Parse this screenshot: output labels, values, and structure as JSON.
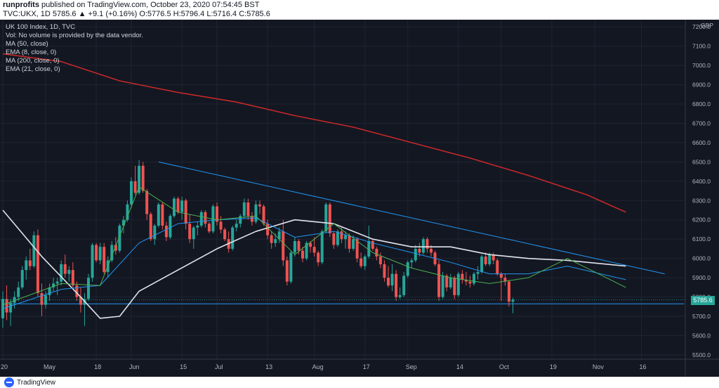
{
  "header": {
    "user": "runprofits",
    "published": " published on TradingView.com, October 23, 2020 07:54:45 BST",
    "symbol_line": "TVC:UKX, 1D  5785.6  ▲ +9.1 (+0.16%)  O:5776.5  H:5796.4  L:5716.4  C:5785.6"
  },
  "legend": {
    "title": "UK 100 Index, 1D, TVC",
    "volume_note": "Vol: No volume is provided by the data vendor.",
    "studies": [
      "MA (50, close)",
      "EMA (8, close, 0)",
      "MA (200, close, 0)",
      "EMA (21, close, 0)"
    ]
  },
  "price_tag": "5785.6",
  "footer": {
    "brand": "TradingView"
  },
  "colors": {
    "background": "#131722",
    "up": "#26a69a",
    "down": "#ef5350",
    "ma50": "#e0e3eb",
    "ema8": "#4caf50",
    "ma200": "#c62828",
    "ema21": "#2196f3",
    "trendline": "#2196f3"
  },
  "chart_data": {
    "type": "candlestick",
    "currency": "GBP",
    "ylim": [
      5500,
      7200
    ],
    "yticks": [
      "7200.0",
      "7100.0",
      "7000.0",
      "6900.0",
      "6800.0",
      "6700.0",
      "6600.0",
      "6500.0",
      "6400.0",
      "6300.0",
      "6200.0",
      "6100.0",
      "6000.0",
      "5900.0",
      "5800.0",
      "5700.0",
      "5600.0",
      "5500.0"
    ],
    "xticks": [
      "20",
      "May",
      "18",
      "Jun",
      "15",
      "Jul",
      "13",
      "Aug",
      "17",
      "Sep",
      "14",
      "Oct",
      "19",
      "Nov",
      "16"
    ],
    "last_price": 5785.6,
    "ohlc": [
      [
        5690,
        5830,
        5640,
        5790
      ],
      [
        5790,
        5860,
        5680,
        5720
      ],
      [
        5720,
        5790,
        5650,
        5770
      ],
      [
        5770,
        5830,
        5740,
        5800
      ],
      [
        5800,
        5880,
        5780,
        5850
      ],
      [
        5850,
        5960,
        5840,
        5940
      ],
      [
        5940,
        6010,
        5890,
        5990
      ],
      [
        5990,
        6050,
        5940,
        5960
      ],
      [
        5960,
        6140,
        5950,
        6120
      ],
      [
        6120,
        6150,
        5800,
        5820
      ],
      [
        5820,
        5870,
        5700,
        5760
      ],
      [
        5760,
        5830,
        5740,
        5810
      ],
      [
        5810,
        5870,
        5780,
        5850
      ],
      [
        5850,
        5900,
        5830,
        5870
      ],
      [
        5870,
        5900,
        5810,
        5880
      ],
      [
        5880,
        5990,
        5860,
        5970
      ],
      [
        5970,
        6020,
        5900,
        5920
      ],
      [
        5920,
        5960,
        5880,
        5940
      ],
      [
        5940,
        5980,
        5850,
        5860
      ],
      [
        5860,
        5880,
        5780,
        5800
      ],
      [
        5800,
        5850,
        5720,
        5760
      ],
      [
        5760,
        5820,
        5650,
        5790
      ],
      [
        5790,
        5920,
        5780,
        5900
      ],
      [
        5900,
        6080,
        5880,
        6070
      ],
      [
        6070,
        6080,
        5980,
        5990
      ],
      [
        5990,
        6080,
        5970,
        6060
      ],
      [
        6060,
        6080,
        5920,
        5930
      ],
      [
        5930,
        6010,
        5900,
        5990
      ],
      [
        5990,
        6090,
        5980,
        6070
      ],
      [
        6070,
        6110,
        6020,
        6040
      ],
      [
        6040,
        6180,
        6030,
        6170
      ],
      [
        6170,
        6220,
        6130,
        6200
      ],
      [
        6200,
        6300,
        6190,
        6280
      ],
      [
        6280,
        6420,
        6260,
        6400
      ],
      [
        6400,
        6480,
        6330,
        6340
      ],
      [
        6340,
        6510,
        6330,
        6480
      ],
      [
        6480,
        6500,
        6340,
        6350
      ],
      [
        6350,
        6360,
        6200,
        6230
      ],
      [
        6230,
        6240,
        6090,
        6100
      ],
      [
        6100,
        6180,
        6070,
        6170
      ],
      [
        6170,
        6290,
        6160,
        6280
      ],
      [
        6280,
        6290,
        6150,
        6170
      ],
      [
        6170,
        6190,
        6090,
        6110
      ],
      [
        6110,
        6230,
        6100,
        6220
      ],
      [
        6220,
        6320,
        6210,
        6310
      ],
      [
        6310,
        6320,
        6230,
        6240
      ],
      [
        6240,
        6320,
        6200,
        6300
      ],
      [
        6300,
        6310,
        6150,
        6180
      ],
      [
        6180,
        6230,
        6080,
        6100
      ],
      [
        6100,
        6170,
        6050,
        6160
      ],
      [
        6160,
        6190,
        6120,
        6170
      ],
      [
        6170,
        6250,
        6160,
        6240
      ],
      [
        6240,
        6250,
        6160,
        6180
      ],
      [
        6180,
        6190,
        6130,
        6140
      ],
      [
        6140,
        6280,
        6130,
        6270
      ],
      [
        6270,
        6290,
        6170,
        6190
      ],
      [
        6190,
        6220,
        6130,
        6150
      ],
      [
        6150,
        6160,
        6090,
        6100
      ],
      [
        6100,
        6140,
        6030,
        6050
      ],
      [
        6050,
        6170,
        6040,
        6160
      ],
      [
        6160,
        6200,
        6140,
        6180
      ],
      [
        6180,
        6230,
        6160,
        6220
      ],
      [
        6220,
        6310,
        6210,
        6290
      ],
      [
        6290,
        6310,
        6200,
        6220
      ],
      [
        6220,
        6240,
        6170,
        6190
      ],
      [
        6190,
        6300,
        6180,
        6280
      ],
      [
        6280,
        6300,
        6230,
        6270
      ],
      [
        6270,
        6280,
        6170,
        6180
      ],
      [
        6180,
        6200,
        6100,
        6120
      ],
      [
        6120,
        6140,
        6050,
        6080
      ],
      [
        6080,
        6130,
        6060,
        6100
      ],
      [
        6100,
        6160,
        6080,
        6140
      ],
      [
        6140,
        6200,
        5960,
        5990
      ],
      [
        5990,
        6010,
        5860,
        5880
      ],
      [
        5880,
        6040,
        5870,
        6030
      ],
      [
        6030,
        6110,
        6010,
        6090
      ],
      [
        6090,
        6100,
        6020,
        6040
      ],
      [
        6040,
        6060,
        5980,
        6000
      ],
      [
        6000,
        6090,
        5990,
        6080
      ],
      [
        6080,
        6090,
        6030,
        6060
      ],
      [
        6060,
        6110,
        6010,
        6030
      ],
      [
        6030,
        6040,
        5960,
        5980
      ],
      [
        5980,
        6150,
        5970,
        6140
      ],
      [
        6140,
        6290,
        6130,
        6280
      ],
      [
        6280,
        6290,
        6110,
        6130
      ],
      [
        6130,
        6140,
        6050,
        6070
      ],
      [
        6070,
        6150,
        6060,
        6140
      ],
      [
        6140,
        6160,
        6080,
        6100
      ],
      [
        6100,
        6140,
        6050,
        6120
      ],
      [
        6120,
        6130,
        6030,
        6050
      ],
      [
        6050,
        6120,
        6040,
        6100
      ],
      [
        6100,
        6110,
        5980,
        6000
      ],
      [
        6000,
        6030,
        5950,
        5960
      ],
      [
        5960,
        6020,
        5940,
        6010
      ],
      [
        6010,
        6170,
        6000,
        6090
      ],
      [
        6090,
        6100,
        6040,
        6050
      ],
      [
        6050,
        6060,
        5990,
        6010
      ],
      [
        6010,
        6030,
        5950,
        5970
      ],
      [
        5970,
        5990,
        5880,
        5900
      ],
      [
        5900,
        5960,
        5850,
        5860
      ],
      [
        5860,
        5970,
        5830,
        5920
      ],
      [
        5920,
        5940,
        5780,
        5800
      ],
      [
        5800,
        5850,
        5790,
        5810
      ],
      [
        5810,
        5930,
        5800,
        5910
      ],
      [
        5910,
        5990,
        5900,
        5980
      ],
      [
        5980,
        6000,
        5950,
        5990
      ],
      [
        5990,
        6070,
        5980,
        6050
      ],
      [
        6050,
        6080,
        6010,
        6030
      ],
      [
        6030,
        6110,
        6020,
        6100
      ],
      [
        6100,
        6110,
        6030,
        6050
      ],
      [
        6050,
        6070,
        6010,
        6030
      ],
      [
        6030,
        6040,
        5960,
        5970
      ],
      [
        5970,
        5990,
        5780,
        5800
      ],
      [
        5800,
        5930,
        5790,
        5910
      ],
      [
        5910,
        5920,
        5830,
        5850
      ],
      [
        5850,
        5920,
        5840,
        5900
      ],
      [
        5900,
        5910,
        5790,
        5810
      ],
      [
        5810,
        5930,
        5800,
        5920
      ],
      [
        5920,
        5940,
        5870,
        5890
      ],
      [
        5890,
        5930,
        5860,
        5880
      ],
      [
        5880,
        5910,
        5850,
        5870
      ],
      [
        5870,
        5930,
        5860,
        5920
      ],
      [
        5920,
        5960,
        5890,
        5930
      ],
      [
        5930,
        6020,
        5920,
        6010
      ],
      [
        6010,
        6030,
        5960,
        5970
      ],
      [
        5970,
        6030,
        5960,
        6020
      ],
      [
        6020,
        6030,
        5970,
        5990
      ],
      [
        5990,
        6000,
        5910,
        5920
      ],
      [
        5920,
        5930,
        5780,
        5900
      ],
      [
        5900,
        5920,
        5860,
        5880
      ],
      [
        5880,
        5890,
        5750,
        5776
      ],
      [
        5776,
        5796,
        5716,
        5786
      ]
    ],
    "series": [
      {
        "name": "MA (200, close, 0)",
        "points": [
          [
            0,
            7060
          ],
          [
            15,
            7020
          ],
          [
            30,
            6920
          ],
          [
            45,
            6860
          ],
          [
            60,
            6810
          ],
          [
            75,
            6740
          ],
          [
            90,
            6680
          ],
          [
            105,
            6600
          ],
          [
            120,
            6520
          ],
          [
            135,
            6430
          ],
          [
            150,
            6330
          ],
          [
            160,
            6240
          ]
        ]
      },
      {
        "name": "MA (50, close)",
        "points": [
          [
            0,
            6250
          ],
          [
            10,
            6010
          ],
          [
            20,
            5800
          ],
          [
            25,
            5690
          ],
          [
            30,
            5700
          ],
          [
            35,
            5830
          ],
          [
            45,
            5940
          ],
          [
            55,
            6050
          ],
          [
            65,
            6140
          ],
          [
            75,
            6200
          ],
          [
            85,
            6180
          ],
          [
            95,
            6100
          ],
          [
            105,
            6060
          ],
          [
            115,
            6060
          ],
          [
            125,
            6020
          ],
          [
            135,
            6000
          ],
          [
            145,
            5990
          ],
          [
            160,
            5960
          ]
        ]
      },
      {
        "name": "EMA (21, close, 0)",
        "points": [
          [
            0,
            5740
          ],
          [
            15,
            5840
          ],
          [
            25,
            5860
          ],
          [
            35,
            6080
          ],
          [
            45,
            6180
          ],
          [
            55,
            6200
          ],
          [
            65,
            6210
          ],
          [
            75,
            6110
          ],
          [
            85,
            6140
          ],
          [
            95,
            6080
          ],
          [
            105,
            6030
          ],
          [
            115,
            5980
          ],
          [
            125,
            5920
          ],
          [
            135,
            5920
          ],
          [
            145,
            5960
          ],
          [
            160,
            5890
          ]
        ]
      },
      {
        "name": "EMA (8, close, 0)",
        "points": [
          [
            0,
            5760
          ],
          [
            15,
            5870
          ],
          [
            25,
            5860
          ],
          [
            35,
            6370
          ],
          [
            45,
            6240
          ],
          [
            55,
            6200
          ],
          [
            65,
            6220
          ],
          [
            75,
            6020
          ],
          [
            85,
            6180
          ],
          [
            95,
            6030
          ],
          [
            105,
            5950
          ],
          [
            115,
            5900
          ],
          [
            125,
            5870
          ],
          [
            135,
            5900
          ],
          [
            145,
            6000
          ],
          [
            155,
            5900
          ],
          [
            160,
            5850
          ]
        ]
      }
    ],
    "trendlines": [
      {
        "from": [
          40,
          6500
        ],
        "to": [
          170,
          5920
        ]
      },
      {
        "from": [
          0,
          5765
        ],
        "to": [
          175,
          5765
        ]
      }
    ]
  }
}
